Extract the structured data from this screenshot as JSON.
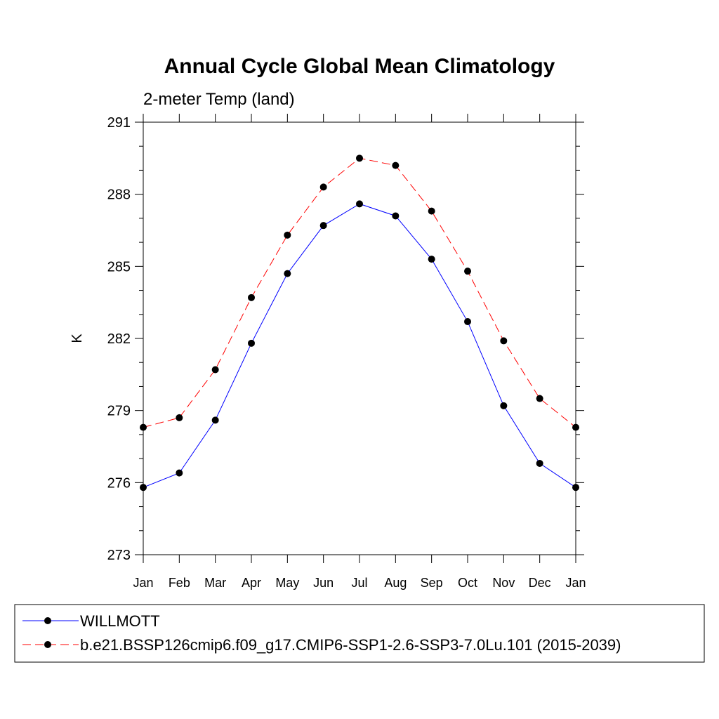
{
  "chart_data": {
    "type": "line",
    "title": "Annual Cycle Global Mean Climatology",
    "subtitle": "2-meter Temp (land)",
    "xlabel": "",
    "ylabel": "K",
    "categories": [
      "Jan",
      "Feb",
      "Mar",
      "Apr",
      "May",
      "Jun",
      "Jul",
      "Aug",
      "Sep",
      "Oct",
      "Nov",
      "Dec",
      "Jan"
    ],
    "ylim": [
      273,
      291
    ],
    "yticks": [
      273,
      276,
      279,
      282,
      285,
      288,
      291
    ],
    "grid": false,
    "legend_position": "bottom",
    "series": [
      {
        "name": "WILLMOTT",
        "color": "#0000ff",
        "line_style": "solid",
        "marker": "filled-circle",
        "values": [
          275.8,
          276.4,
          278.6,
          281.8,
          284.7,
          286.7,
          287.6,
          287.1,
          285.3,
          282.7,
          279.2,
          276.8,
          275.8
        ]
      },
      {
        "name": "b.e21.BSSP126cmip6.f09_g17.CMIP6-SSP1-2.6-SSP3-7.0Lu.101 (2015-2039)",
        "color": "#ff0000",
        "line_style": "dashed",
        "marker": "filled-circle",
        "values": [
          278.3,
          278.7,
          280.7,
          283.7,
          286.3,
          288.3,
          289.5,
          289.2,
          287.3,
          284.8,
          281.9,
          279.5,
          278.3
        ]
      }
    ]
  }
}
